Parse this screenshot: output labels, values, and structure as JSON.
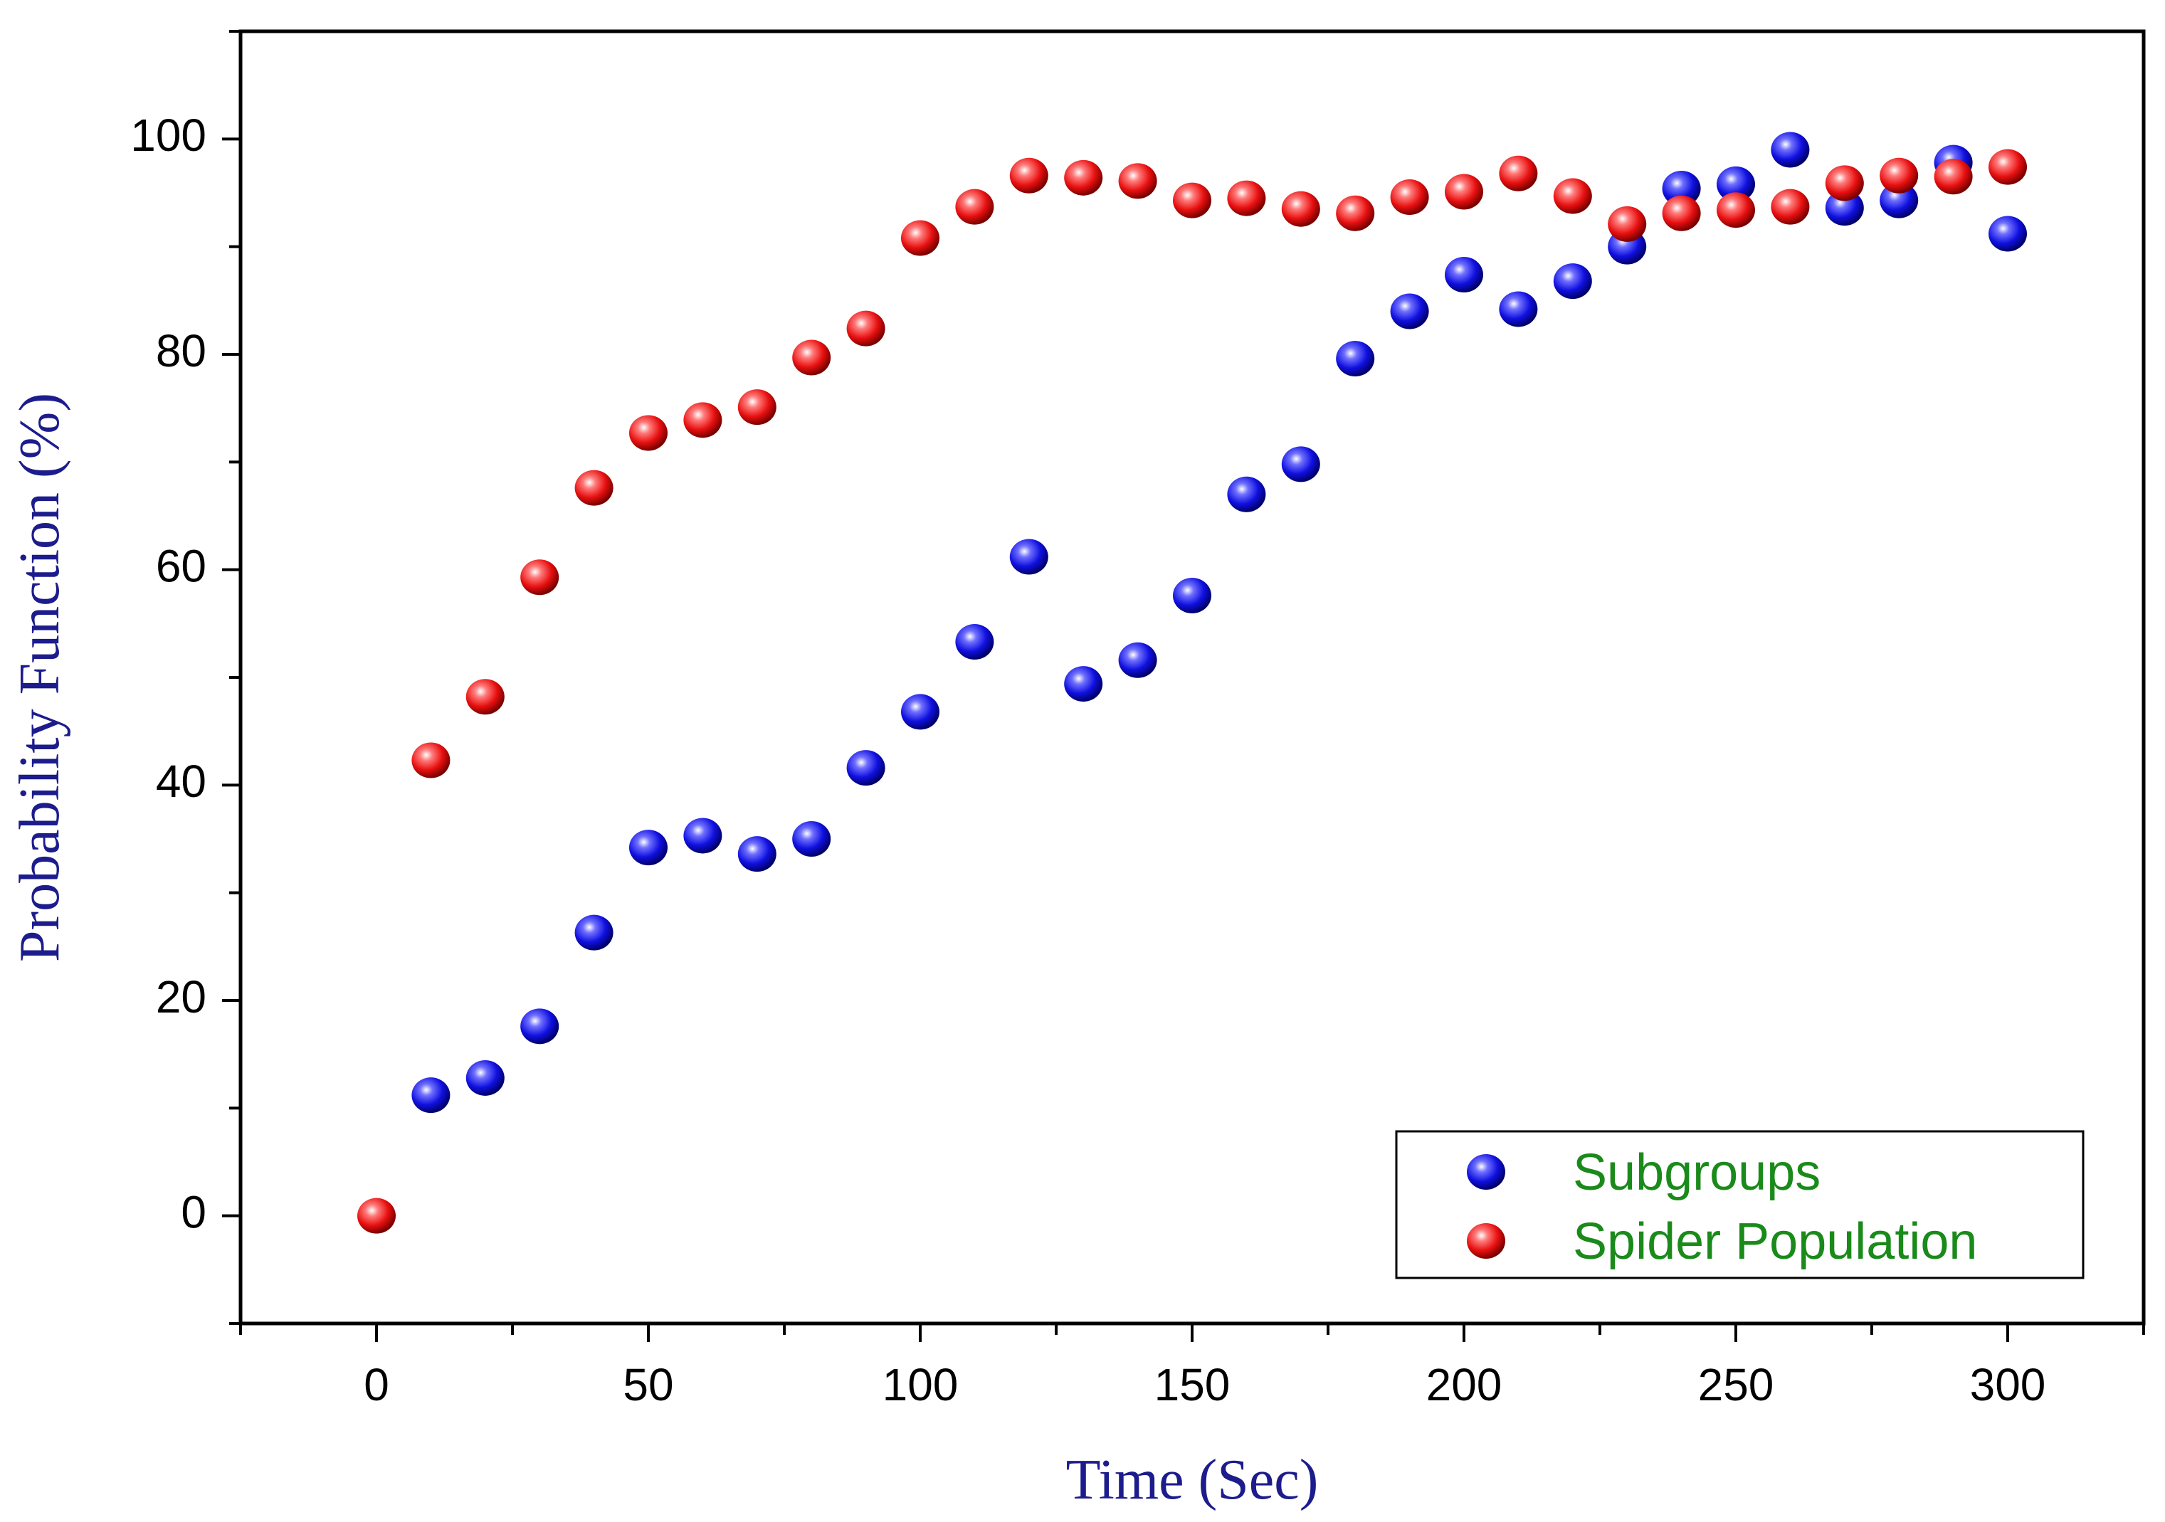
{
  "colors": {
    "subgroups": "#1010e0",
    "spider": "#e81010",
    "axis_title": "#1c1c8c",
    "legend_text": "#1a8a1a",
    "axis": "#000000"
  },
  "chart_data": {
    "type": "scatter",
    "title": "",
    "xlabel": "Time (Sec)",
    "ylabel": "Probability Function (%)",
    "xlim": [
      -25,
      325
    ],
    "ylim": [
      -10,
      110
    ],
    "xticks": [
      0,
      50,
      100,
      150,
      200,
      250,
      300
    ],
    "yticks": [
      0,
      20,
      40,
      60,
      80,
      100
    ],
    "xtick_labels": [
      "0",
      "50",
      "100",
      "150",
      "200",
      "250",
      "300"
    ],
    "ytick_labels": [
      "0",
      "20",
      "40",
      "60",
      "80",
      "100"
    ],
    "legend_position": "bottom-right",
    "series": [
      {
        "name": "Subgroups",
        "color": "#1010e0",
        "points": [
          [
            10,
            11.2
          ],
          [
            20,
            12.8
          ],
          [
            30,
            17.6
          ],
          [
            40,
            26.3
          ],
          [
            50,
            34.2
          ],
          [
            60,
            35.3
          ],
          [
            70,
            33.6
          ],
          [
            80,
            35.0
          ],
          [
            90,
            41.6
          ],
          [
            100,
            46.8
          ],
          [
            110,
            53.3
          ],
          [
            120,
            61.2
          ],
          [
            130,
            49.4
          ],
          [
            140,
            51.6
          ],
          [
            150,
            57.6
          ],
          [
            160,
            67.0
          ],
          [
            170,
            69.8
          ],
          [
            180,
            79.6
          ],
          [
            190,
            84.0
          ],
          [
            200,
            87.4
          ],
          [
            210,
            84.2
          ],
          [
            220,
            86.8
          ],
          [
            230,
            90.0
          ],
          [
            240,
            95.4
          ],
          [
            250,
            95.8
          ],
          [
            260,
            99.0
          ],
          [
            270,
            93.6
          ],
          [
            280,
            94.3
          ],
          [
            290,
            97.8
          ],
          [
            300,
            91.2
          ]
        ]
      },
      {
        "name": "Spider Population",
        "color": "#e81010",
        "points": [
          [
            0,
            0.0
          ],
          [
            10,
            42.3
          ],
          [
            20,
            48.2
          ],
          [
            30,
            59.3
          ],
          [
            40,
            67.6
          ],
          [
            50,
            72.7
          ],
          [
            60,
            73.9
          ],
          [
            70,
            75.1
          ],
          [
            80,
            79.7
          ],
          [
            90,
            82.4
          ],
          [
            100,
            90.8
          ],
          [
            110,
            93.7
          ],
          [
            120,
            96.6
          ],
          [
            130,
            96.4
          ],
          [
            140,
            96.1
          ],
          [
            150,
            94.3
          ],
          [
            160,
            94.5
          ],
          [
            170,
            93.5
          ],
          [
            180,
            93.1
          ],
          [
            190,
            94.6
          ],
          [
            200,
            95.1
          ],
          [
            210,
            96.8
          ],
          [
            220,
            94.7
          ],
          [
            230,
            92.1
          ],
          [
            240,
            93.1
          ],
          [
            250,
            93.4
          ],
          [
            260,
            93.7
          ],
          [
            270,
            95.9
          ],
          [
            280,
            96.6
          ],
          [
            290,
            96.5
          ],
          [
            300,
            97.4
          ]
        ]
      }
    ]
  }
}
